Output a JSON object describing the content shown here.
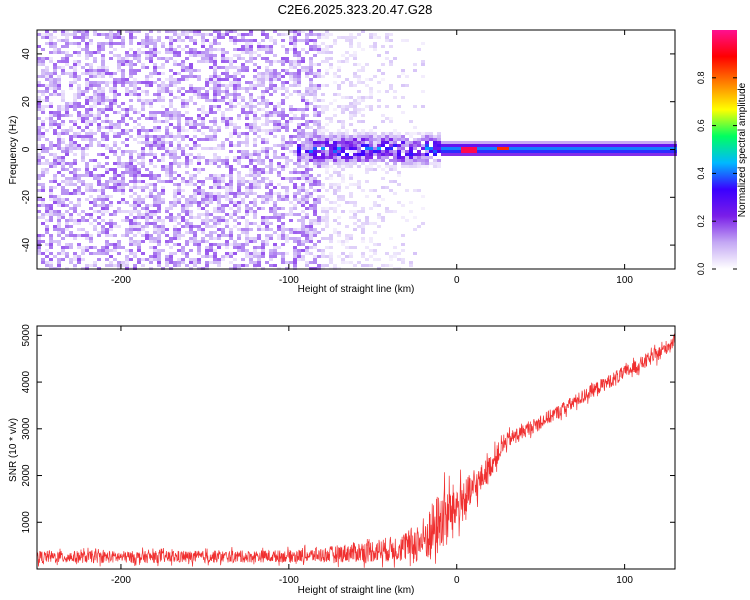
{
  "title": "C2E6.2025.323.20.47.G28",
  "chart_data": [
    {
      "type": "heatmap",
      "xlabel": "Height of straight line (km)",
      "ylabel": "Frequency (Hz)",
      "xlim": [
        -250,
        130
      ],
      "ylim": [
        -50,
        50
      ],
      "x_ticks": [
        -200,
        -100,
        0,
        100
      ],
      "y_ticks": [
        -40,
        -20,
        0,
        20,
        40
      ],
      "colorbar": {
        "label": "Normalized spectral amplitude",
        "range": [
          0,
          1
        ],
        "ticks": [
          0.0,
          0.2,
          0.4,
          0.6,
          0.8
        ],
        "colors": [
          "#ffffff",
          "#c4a8f4",
          "#7a1ee8",
          "#3a00ff",
          "#00b8ff",
          "#00ff60",
          "#ffff00",
          "#ff8000",
          "#ff0000",
          "#ff1090"
        ]
      },
      "regions": [
        {
          "x_from": -250,
          "x_to": -80,
          "freq_band": [
            -50,
            50
          ],
          "amplitude": 0.1,
          "pattern": "dense scattered noise"
        },
        {
          "x_from": -80,
          "x_to": -20,
          "freq_band": [
            -50,
            50
          ],
          "amplitude": 0.03,
          "pattern": "sparse faint noise"
        },
        {
          "x_from": -95,
          "x_to": -10,
          "freq_band": [
            -8,
            8
          ],
          "amplitude": 0.3,
          "pattern": "noisy concentrated band"
        },
        {
          "x_from": -10,
          "x_to": 130,
          "freq_band": [
            -3,
            3
          ],
          "amplitude": 0.4,
          "pattern": "steady narrow band"
        },
        {
          "x_from": 3,
          "x_to": 12,
          "freq_band": [
            -1,
            1
          ],
          "amplitude": 0.95,
          "pattern": "peak"
        },
        {
          "x_from": 25,
          "x_to": 30,
          "freq_band": [
            -0.6,
            0.6
          ],
          "amplitude": 0.85,
          "pattern": "peak"
        }
      ]
    },
    {
      "type": "line",
      "xlabel": "Height of straight line (km)",
      "ylabel": "SNR (10 * v/v)",
      "xlim": [
        -250,
        130
      ],
      "ylim": [
        0,
        5200
      ],
      "x_ticks": [
        -200,
        -100,
        0,
        100
      ],
      "y_ticks": [
        1000,
        2000,
        3000,
        4000,
        5000
      ],
      "line_color": "#f03030",
      "series_outline": {
        "x": [
          -250,
          -200,
          -150,
          -100,
          -80,
          -60,
          -40,
          -30,
          -20,
          -15,
          -10,
          -5,
          0,
          5,
          10,
          15,
          20,
          25,
          30,
          40,
          60,
          80,
          100,
          120,
          130
        ],
        "y": [
          260,
          255,
          260,
          275,
          300,
          360,
          420,
          480,
          620,
          800,
          1000,
          1180,
          1350,
          1500,
          1700,
          1950,
          2200,
          2500,
          2750,
          2950,
          3350,
          3800,
          4200,
          4600,
          4900
        ],
        "noise": [
          130,
          130,
          130,
          130,
          160,
          220,
          270,
          320,
          500,
          600,
          700,
          600,
          500,
          450,
          380,
          300,
          250,
          220,
          170,
          150,
          150,
          150,
          150,
          150,
          150
        ]
      }
    }
  ]
}
